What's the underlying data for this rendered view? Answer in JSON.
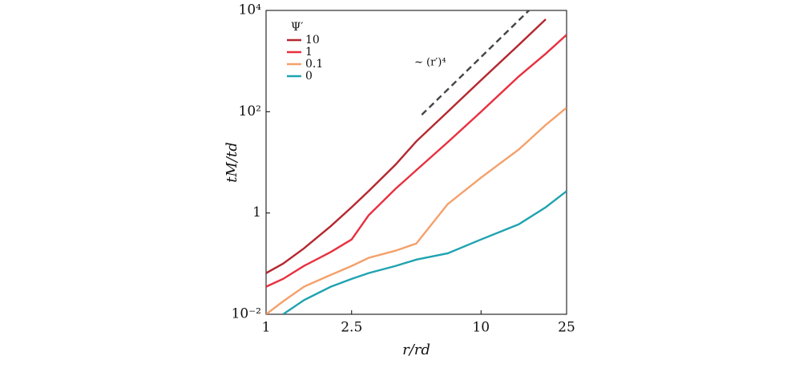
{
  "chart_data": {
    "type": "line",
    "x_label": "r/rd",
    "y_label": "tM/td",
    "xscale": "log",
    "yscale": "log",
    "xlim": [
      1,
      25
    ],
    "ylim": [
      0.01,
      10000
    ],
    "xticks": [
      1,
      2.5,
      10,
      25
    ],
    "yticks": [
      {
        "value": 0.01,
        "label": "10⁻²"
      },
      1,
      {
        "value": 100,
        "label": "10²"
      },
      {
        "value": 10000,
        "label": "10⁴"
      }
    ],
    "legend_title": "Ψ′",
    "legend": "upper left",
    "x": [
      1,
      1.2,
      1.5,
      2,
      2.5,
      3,
      4,
      5,
      7,
      10,
      15,
      20,
      25
    ],
    "series": [
      {
        "name": "10",
        "color": "#b5272f",
        "values": [
          0.065,
          0.1,
          0.2,
          0.55,
          1.3,
          2.7,
          9,
          26,
          100,
          420,
          2100,
          6700,
          null
        ]
      },
      {
        "name": "1",
        "color": "#e8303f",
        "values": [
          0.035,
          0.05,
          0.09,
          0.17,
          0.3,
          0.9,
          3,
          7,
          25,
          100,
          500,
          1400,
          3300
        ]
      },
      {
        "name": "0.1",
        "color": "#f5a06a",
        "values": [
          0.01,
          0.018,
          0.035,
          0.06,
          0.09,
          0.13,
          0.18,
          0.25,
          1.5,
          5,
          18,
          55,
          120
        ]
      },
      {
        "name": "0",
        "color": "#1fa3b0",
        "values": [
          null,
          0.01,
          0.019,
          0.035,
          0.05,
          0.065,
          0.09,
          0.12,
          0.16,
          0.3,
          0.6,
          1.3,
          2.7
        ]
      }
    ],
    "reference": {
      "label": "~ (r′)⁴",
      "color": "#444444",
      "x": [
        5.3,
        16.7
      ],
      "values": [
        87,
        10000
      ]
    }
  }
}
